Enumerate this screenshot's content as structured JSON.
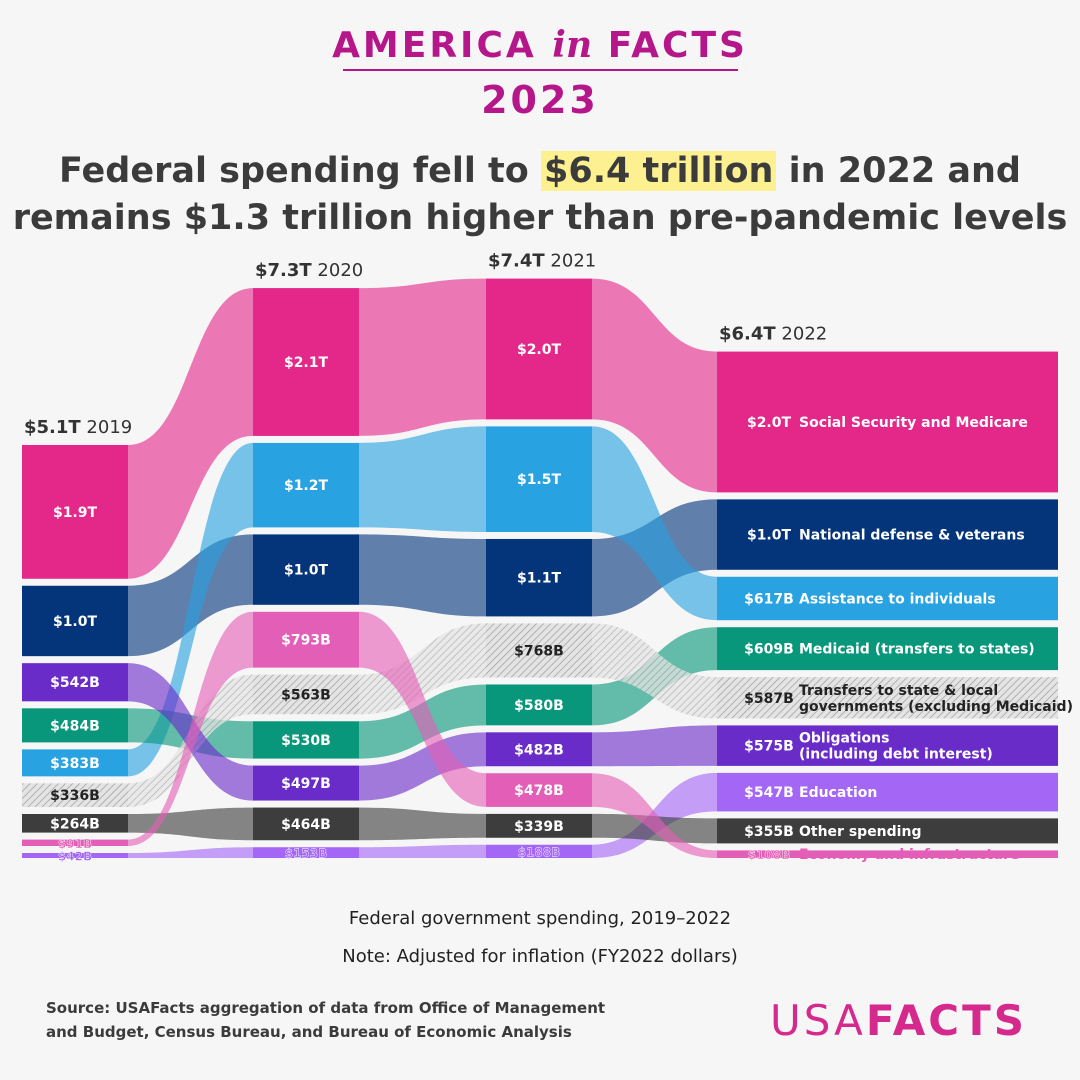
{
  "header": {
    "brand_left": "AMERICA",
    "brand_mid": "in",
    "brand_right": "FACTS",
    "year": "2023",
    "headline_pre": "Federal spending fell to",
    "headline_highlight": "$6.4 trillion",
    "headline_post": "in 2022 and",
    "headline_line2": "remains $1.3 trillion higher than pre-pandemic levels"
  },
  "footer": {
    "caption": "Federal government spending, 2019–2022",
    "note": "Note: Adjusted for inflation (FY2022 dollars)",
    "source_line1": "Source: USAFacts aggregation of data from Office of Management",
    "source_line2": "and Budget, Census Bureau, and Bureau of Economic Analysis",
    "logo_light": "USA",
    "logo_bold": "FACTS"
  },
  "colors": {
    "Social Security and Medicare": "#e3288a",
    "National defense & veterans": "#04357a",
    "Assistance to individuals": "#28a2e0",
    "Medicaid (transfers to states)": "#08977a",
    "Transfers to state & local governments (excluding Medicaid)": "#d7d7d7",
    "Obligations (including debt interest)": "#6a2cc9",
    "Education": "#a366f5",
    "Other spending": "#3d3d3d",
    "Economy and infrastructure": "#e35fb7"
  },
  "chart_data": {
    "type": "sankey",
    "unit": "USD (FY2022 dollars)",
    "x": [
      "2019",
      "2020",
      "2021",
      "2022"
    ],
    "totals": [
      {
        "amount": "$5.1T",
        "year": "2019"
      },
      {
        "amount": "$7.3T",
        "year": "2020"
      },
      {
        "amount": "$7.4T",
        "year": "2021"
      },
      {
        "amount": "$6.4T",
        "year": "2022"
      }
    ],
    "series": [
      {
        "name": "Social Security and Medicare",
        "values": [
          1900,
          2100,
          2000,
          2000
        ],
        "labels": [
          "$1.9T",
          "$2.1T",
          "$2.0T",
          "$2.0T"
        ]
      },
      {
        "name": "National defense & veterans",
        "values": [
          1000,
          1000,
          1100,
          1000
        ],
        "labels": [
          "$1.0T",
          "$1.0T",
          "$1.1T",
          "$1.0T"
        ]
      },
      {
        "name": "Assistance to individuals",
        "values": [
          383,
          1200,
          1500,
          617
        ],
        "labels": [
          "$383B",
          "$1.2T",
          "$1.5T",
          "$617B"
        ]
      },
      {
        "name": "Medicaid (transfers to states)",
        "values": [
          484,
          530,
          580,
          609
        ],
        "labels": [
          "$484B",
          "$530B",
          "$580B",
          "$609B"
        ]
      },
      {
        "name": "Transfers to state & local governments (excluding Medicaid)",
        "legend": [
          "Transfers to state & local",
          "governments (excluding Medicaid)"
        ],
        "values": [
          336,
          563,
          768,
          587
        ],
        "labels": [
          "$336B",
          "$563B",
          "$768B",
          "$587B"
        ]
      },
      {
        "name": "Obligations (including debt interest)",
        "legend": [
          "Obligations",
          "(including debt interest)"
        ],
        "values": [
          542,
          497,
          482,
          575
        ],
        "labels": [
          "$542B",
          "$497B",
          "$482B",
          "$575B"
        ]
      },
      {
        "name": "Education",
        "values": [
          42,
          153,
          188,
          547
        ],
        "labels": [
          "$42B",
          "$153B",
          "$188B",
          "$547B"
        ]
      },
      {
        "name": "Other spending",
        "values": [
          264,
          464,
          339,
          355
        ],
        "labels": [
          "$264B",
          "$464B",
          "$339B",
          "$355B"
        ]
      },
      {
        "name": "Economy and infrastructure",
        "values": [
          91,
          793,
          478,
          108
        ],
        "labels": [
          "$91B",
          "$793B",
          "$478B",
          "$108B"
        ]
      }
    ]
  }
}
